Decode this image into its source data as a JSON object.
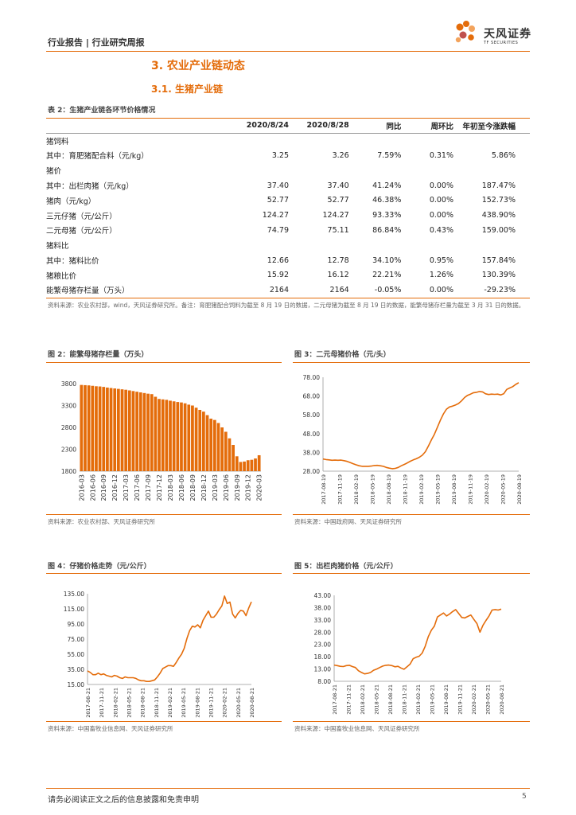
{
  "header": {
    "left": "行业报告 | 行业研究周报",
    "logo_cn": "天风证券",
    "logo_en": "TF SECURITIES"
  },
  "section_title": "3. 农业产业链动态",
  "subsection_title": "3.1. 生猪产业链",
  "table": {
    "caption": "表 2：生猪产业链各环节价格情况",
    "columns": [
      "",
      "2020/8/24",
      "2020/8/28",
      "同比",
      "周环比",
      "年初至今涨跌幅"
    ],
    "rows": [
      {
        "label": "猪饲料",
        "indent": 0,
        "values": [
          "",
          "",
          "",
          "",
          ""
        ]
      },
      {
        "label": "其中：育肥猪配合料（元/kg）",
        "indent": 1,
        "values": [
          "3.25",
          "3.26",
          "7.59%",
          "0.31%",
          "5.86%"
        ]
      },
      {
        "label": "猪价",
        "indent": 0,
        "values": [
          "",
          "",
          "",
          "",
          ""
        ]
      },
      {
        "label": "其中：出栏肉猪（元/kg）",
        "indent": 1,
        "values": [
          "37.40",
          "37.40",
          "41.24%",
          "0.00%",
          "187.47%"
        ]
      },
      {
        "label": "猪肉（元/kg）",
        "indent": 2,
        "values": [
          "52.77",
          "52.77",
          "46.38%",
          "0.00%",
          "152.73%"
        ]
      },
      {
        "label": "三元仔猪（元/公斤）",
        "indent": 2,
        "values": [
          "124.27",
          "124.27",
          "93.33%",
          "0.00%",
          "438.90%"
        ]
      },
      {
        "label": "二元母猪（元/公斤）",
        "indent": 2,
        "values": [
          "74.79",
          "75.11",
          "86.84%",
          "0.43%",
          "159.00%"
        ]
      },
      {
        "label": "猪料比",
        "indent": 0,
        "values": [
          "",
          "",
          "",
          "",
          ""
        ]
      },
      {
        "label": "其中：猪料比价",
        "indent": 1,
        "values": [
          "12.66",
          "12.78",
          "34.10%",
          "0.95%",
          "157.84%"
        ]
      },
      {
        "label": "猪粮比价",
        "indent": 2,
        "values": [
          "15.92",
          "16.12",
          "22.21%",
          "1.26%",
          "130.39%"
        ]
      },
      {
        "label": "能繁母猪存栏量（万头）",
        "indent": 0,
        "values": [
          "2164",
          "2164",
          "-0.05%",
          "0.00%",
          "-29.23%"
        ]
      }
    ],
    "note": "资料来源：农业农村部，wind，天风证券研究所。备注：育肥猪配合饲料为截至 8 月 19 日的数据，二元母猪为截至 8 月 19 日的数据，能繁母猪存栏量为截至 3 月 31 日的数据。"
  },
  "figures": {
    "fig2": {
      "caption": "图 2：能繁母猪存栏量（万头）",
      "source": "资料来源：农业农村部、天风证券研究所"
    },
    "fig3": {
      "caption": "图 3：二元母猪价格（元/头）",
      "source": "资料来源：中国政府网、天风证券研究所"
    },
    "fig4": {
      "caption": "图 4：仔猪价格走势（元/公斤）",
      "source": "资料来源：中国畜牧业信息网、天风证券研究所"
    },
    "fig5": {
      "caption": "图 5：出栏肉猪价格（元/公斤）",
      "source": "资料来源：中国畜牧业信息网、天风证券研究所"
    }
  },
  "chart_data": [
    {
      "id": "fig2",
      "type": "bar",
      "title": "能繁母猪存栏量（万头）",
      "color": "#e46c0a",
      "ylim": [
        1800,
        3800
      ],
      "yticks": [
        1800,
        2300,
        2800,
        3300,
        3800
      ],
      "xtick_labels": [
        "2016-03",
        "2016-06",
        "2016-09",
        "2016-12",
        "2017-03",
        "2017-06",
        "2017-09",
        "2017-12",
        "2018-03",
        "2018-06",
        "2018-09",
        "2018-12",
        "2019-03",
        "2019-06",
        "2019-09",
        "2019-12",
        "2020-03"
      ],
      "categories": [
        "2016-03",
        "2016-04",
        "2016-05",
        "2016-06",
        "2016-07",
        "2016-08",
        "2016-09",
        "2016-10",
        "2016-11",
        "2016-12",
        "2017-01",
        "2017-02",
        "2017-03",
        "2017-04",
        "2017-05",
        "2017-06",
        "2017-07",
        "2017-08",
        "2017-09",
        "2017-10",
        "2017-11",
        "2017-12",
        "2018-01",
        "2018-02",
        "2018-03",
        "2018-04",
        "2018-05",
        "2018-06",
        "2018-07",
        "2018-08",
        "2018-09",
        "2018-10",
        "2018-11",
        "2018-12",
        "2019-01",
        "2019-02",
        "2019-03",
        "2019-04",
        "2019-05",
        "2019-06",
        "2019-07",
        "2019-08",
        "2019-09",
        "2019-10",
        "2019-11",
        "2019-12",
        "2020-01",
        "2020-02",
        "2020-03"
      ],
      "values": [
        3770,
        3765,
        3760,
        3750,
        3740,
        3735,
        3725,
        3710,
        3700,
        3690,
        3680,
        3670,
        3660,
        3645,
        3630,
        3615,
        3600,
        3585,
        3570,
        3560,
        3500,
        3450,
        3440,
        3430,
        3410,
        3395,
        3380,
        3370,
        3350,
        3320,
        3300,
        3250,
        3200,
        3160,
        3080,
        3000,
        2970,
        2900,
        2800,
        2700,
        2550,
        2400,
        2140,
        2010,
        2020,
        2050,
        2060,
        2090,
        2164
      ]
    },
    {
      "id": "fig3",
      "type": "line",
      "title": "二元母猪价格（元/头）",
      "color": "#e46c0a",
      "ylim": [
        28,
        78
      ],
      "yticks": [
        "28.00",
        "38.00",
        "48.00",
        "58.00",
        "68.00",
        "78.00"
      ],
      "xtick_labels": [
        "2017-08-19",
        "2017-11-19",
        "2018-02-19",
        "2018-05-19",
        "2018-08-19",
        "2018-11-19",
        "2019-02-19",
        "2019-05-19",
        "2019-08-19",
        "2019-11-19",
        "2020-02-19",
        "2020-05-19",
        "2020-08-19"
      ],
      "values": [
        34.5,
        34.2,
        34.0,
        33.8,
        33.9,
        33.8,
        33.9,
        33.6,
        33.2,
        32.6,
        32.0,
        31.4,
        30.9,
        30.6,
        30.6,
        30.6,
        30.7,
        31.0,
        31.1,
        30.9,
        30.6,
        30.0,
        29.6,
        29.3,
        29.5,
        30.0,
        30.9,
        31.6,
        32.4,
        33.3,
        34.0,
        34.6,
        35.4,
        36.5,
        38.4,
        41.4,
        44.6,
        47.6,
        51.4,
        55.2,
        58.5,
        61.0,
        62.2,
        62.6,
        63.2,
        64.0,
        65.4,
        67.2,
        68.4,
        69.0,
        69.8,
        70.0,
        70.4,
        70.2,
        69.2,
        68.8,
        69.0,
        68.9,
        69.0,
        68.6,
        69.2,
        71.5,
        72.3,
        73.0,
        74.2,
        75.11
      ]
    },
    {
      "id": "fig4",
      "type": "line",
      "title": "仔猪价格走势（元/公斤）",
      "color": "#e46c0a",
      "ylim": [
        15,
        135
      ],
      "yticks": [
        "15.00",
        "35.00",
        "55.00",
        "75.00",
        "95.00",
        "115.00",
        "135.00"
      ],
      "xtick_labels": [
        "2017-08-21",
        "2017-11-21",
        "2018-02-21",
        "2018-05-21",
        "2018-08-21",
        "2018-11-21",
        "2019-02-21",
        "2019-05-21",
        "2019-08-21",
        "2019-11-21",
        "2020-02-21",
        "2020-05-21",
        "2020-08-21"
      ],
      "values": [
        33,
        31,
        28,
        28,
        30,
        28,
        29,
        27,
        26,
        25,
        27,
        26,
        24,
        23,
        25,
        24,
        24,
        24,
        23,
        21,
        20,
        20,
        19,
        19,
        20,
        21,
        25,
        30,
        36,
        38,
        40,
        40,
        39,
        44,
        50,
        55,
        63,
        76,
        86,
        92,
        91,
        94,
        90,
        100,
        106,
        112,
        104,
        104,
        108,
        114,
        119,
        132,
        122,
        124,
        108,
        103,
        109,
        113,
        112,
        106,
        116,
        124.27
      ]
    },
    {
      "id": "fig5",
      "type": "line",
      "title": "出栏肉猪价格（元/公斤）",
      "color": "#e46c0a",
      "ylim": [
        8,
        43
      ],
      "yticks": [
        "8.00",
        "13.00",
        "18.00",
        "23.00",
        "28.00",
        "33.00",
        "38.00",
        "43.00"
      ],
      "xtick_labels": [
        "2017-08-21",
        "2017-11-21",
        "2018-02-21",
        "2018-05-21",
        "2018-08-21",
        "2018-11-21",
        "2019-02-21",
        "2019-05-21",
        "2019-08-21",
        "2019-11-21",
        "2020-02-21",
        "2020-05-21",
        "2020-08-21"
      ],
      "values": [
        14.6,
        14.4,
        14.1,
        14.0,
        14.4,
        14.5,
        14.0,
        13.6,
        12.3,
        11.6,
        11.0,
        11.2,
        11.6,
        12.5,
        13.0,
        13.6,
        14.2,
        14.5,
        14.6,
        14.4,
        13.9,
        14.1,
        13.4,
        12.9,
        13.9,
        15.0,
        17.2,
        17.8,
        18.2,
        19.5,
        22.3,
        26.2,
        28.8,
        30.5,
        34.2,
        35.0,
        35.8,
        34.6,
        35.4,
        36.4,
        37.2,
        35.6,
        34.0,
        33.8,
        34.4,
        35.0,
        33.2,
        31.5,
        28.0,
        30.8,
        32.8,
        34.6,
        37.0,
        37.2,
        37.0,
        37.4
      ]
    }
  ],
  "footer": {
    "text": "请务必阅读正文之后的信息披露和免责申明",
    "page": "5"
  }
}
